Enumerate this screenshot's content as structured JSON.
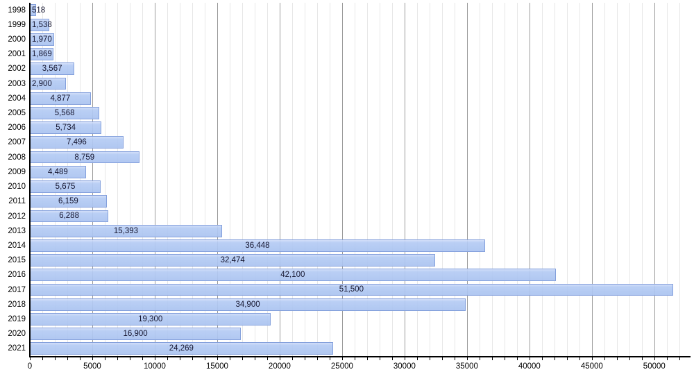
{
  "chart_data": {
    "type": "bar",
    "orientation": "horizontal",
    "title": "",
    "xlabel": "",
    "ylabel": "",
    "categories": [
      "1998",
      "1999",
      "2000",
      "2001",
      "2002",
      "2003",
      "2004",
      "2005",
      "2006",
      "2007",
      "2008",
      "2009",
      "2010",
      "2011",
      "2012",
      "2013",
      "2014",
      "2015",
      "2016",
      "2017",
      "2018",
      "2019",
      "2020",
      "2021"
    ],
    "values": [
      518,
      1538,
      1970,
      1869,
      3567,
      2900,
      4877,
      5568,
      5734,
      7496,
      8759,
      4489,
      5675,
      6159,
      6288,
      15393,
      36448,
      32474,
      42100,
      51500,
      34900,
      19300,
      16900,
      24269
    ],
    "value_labels": [
      "518",
      "1,538",
      "1,970",
      "1,869",
      "3,567",
      "2,900",
      "4,877",
      "5,568",
      "5,734",
      "7,496",
      "8,759",
      "4,489",
      "5,675",
      "6,159",
      "6,288",
      "15,393",
      "36,448",
      "32,474",
      "42,100",
      "51,500",
      "34,900",
      "19,300",
      "16,900",
      "24,269"
    ],
    "xlim": [
      0,
      52900
    ],
    "x_major_tick_values": [
      0,
      5000,
      10000,
      15000,
      20000,
      25000,
      30000,
      35000,
      40000,
      45000,
      50000
    ],
    "x_tick_labels": [
      "0",
      "5000",
      "10000",
      "15000",
      "20000",
      "25000",
      "30000",
      "35000",
      "40000",
      "45000",
      "50000"
    ],
    "minor_tick_step": 1000,
    "minor_tick_max": 52000,
    "grid": true,
    "legend": null,
    "colors": {
      "bar_fill": "#aac3f0",
      "bar_fill_top": "#cfdcf8",
      "bar_border": "#84a0dc",
      "minor_grid": "#e7e7e7",
      "major_grid": "#9a9a9a",
      "axis": "#000000",
      "value_text": "#14142e",
      "tick_text": "#000000"
    }
  }
}
